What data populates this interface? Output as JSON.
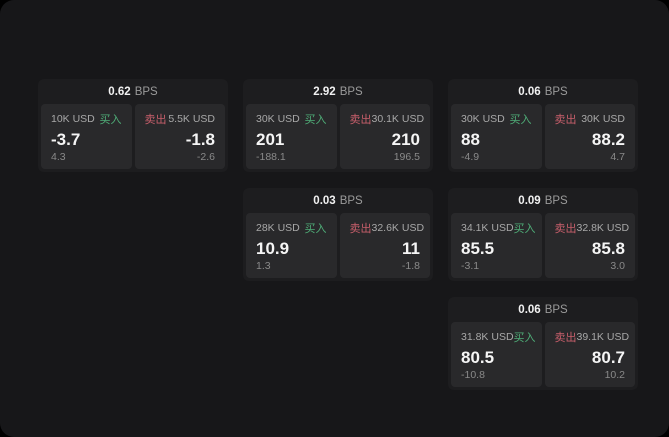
{
  "colors": {
    "buy_green": "#4fae78",
    "sell_red": "#c85f6b",
    "window_bg": "#171719",
    "card_bg": "#1d1d1f",
    "panel_bg": "#29292b"
  },
  "labels": {
    "bps_unit": "BPS",
    "buy": "买入",
    "sell": "卖出"
  },
  "cards": [
    {
      "bps": "0.62",
      "col": 1,
      "row": 1,
      "buy": {
        "amount": "10K USD",
        "price": "-3.7",
        "sub": "4.3"
      },
      "sell": {
        "amount": "5.5K USD",
        "price": "-1.8",
        "sub": "-2.6"
      }
    },
    {
      "bps": "2.92",
      "col": 2,
      "row": 1,
      "buy": {
        "amount": "30K USD",
        "price": "201",
        "sub": "-188.1"
      },
      "sell": {
        "amount": "30.1K USD",
        "price": "210",
        "sub": "196.5"
      }
    },
    {
      "bps": "0.06",
      "col": 3,
      "row": 1,
      "buy": {
        "amount": "30K USD",
        "price": "88",
        "sub": "-4.9"
      },
      "sell": {
        "amount": "30K USD",
        "price": "88.2",
        "sub": "4.7"
      }
    },
    {
      "bps": "0.03",
      "col": 2,
      "row": 2,
      "buy": {
        "amount": "28K USD",
        "price": "10.9",
        "sub": "1.3"
      },
      "sell": {
        "amount": "32.6K USD",
        "price": "11",
        "sub": "-1.8"
      }
    },
    {
      "bps": "0.09",
      "col": 3,
      "row": 2,
      "buy": {
        "amount": "34.1K USD",
        "price": "85.5",
        "sub": "-3.1"
      },
      "sell": {
        "amount": "32.8K USD",
        "price": "85.8",
        "sub": "3.0"
      }
    },
    {
      "bps": "0.06",
      "col": 3,
      "row": 3,
      "buy": {
        "amount": "31.8K USD",
        "price": "80.5",
        "sub": "-10.8"
      },
      "sell": {
        "amount": "39.1K USD",
        "price": "80.7",
        "sub": "10.2"
      }
    }
  ]
}
